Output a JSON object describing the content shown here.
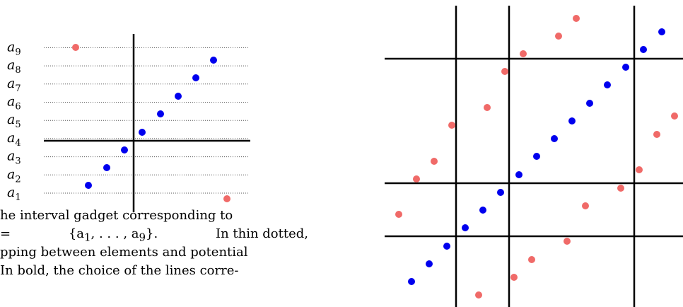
{
  "left_gadget": {
    "labels": [
      "a1",
      "a2",
      "a3",
      "a4",
      "a5",
      "a6",
      "a7",
      "a8",
      "a9"
    ],
    "label_base": "a",
    "colors": {
      "blue": "#0000ee",
      "red": "#f06a68",
      "axis": "#000000",
      "dotted": "#555555"
    }
  },
  "caption": {
    "line1": "he interval gadget corresponding to",
    "line2a": "=",
    "line2b": "{a",
    "line2b_sub1": "1",
    "line2c": ", . . . , a",
    "line2c_sub9": "9",
    "line2d": "}.",
    "line2e": "In thin dotted,",
    "line3": "pping between elements and potential",
    "line4": "In bold, the choice of the lines corre-"
  },
  "right_grid": {
    "colors": {
      "blue": "#0000ee",
      "red": "#f06a68",
      "lines": "#000000"
    }
  }
}
